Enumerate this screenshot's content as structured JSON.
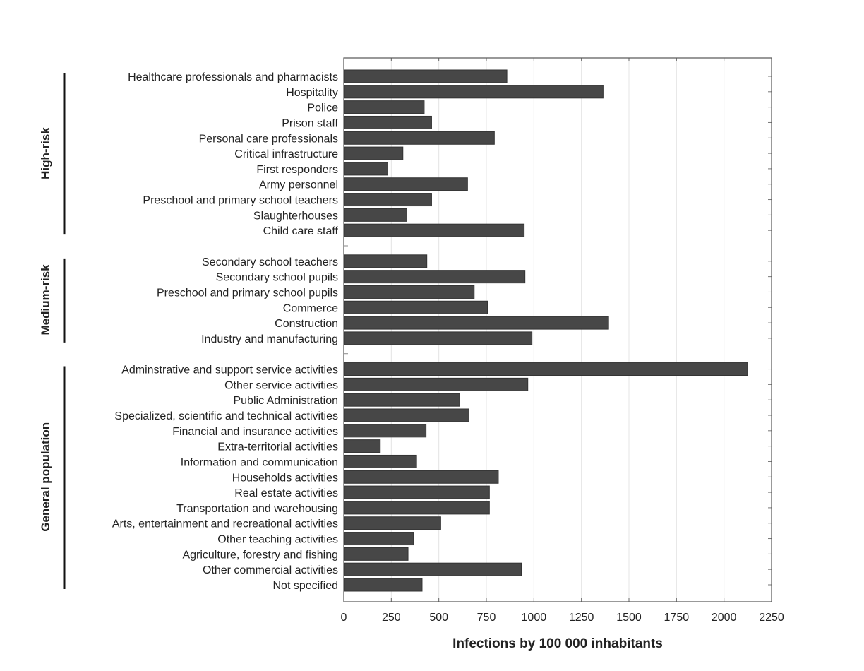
{
  "chart_data": {
    "type": "bar",
    "orientation": "horizontal",
    "title": "",
    "xlabel": "Infections by 100 000 inhabitants",
    "ylabel": "",
    "xlim": [
      0,
      2250
    ],
    "xticks": [
      0,
      250,
      500,
      750,
      1000,
      1250,
      1500,
      1750,
      2000,
      2250
    ],
    "grid": "vertical",
    "bar_color": "#474747",
    "groups": [
      {
        "name": "High-risk",
        "categories": [
          {
            "label": "Healthcare professionals and pharmacists",
            "value": 858
          },
          {
            "label": "Hospitality",
            "value": 1364
          },
          {
            "label": "Police",
            "value": 423
          },
          {
            "label": "Prison staff",
            "value": 462
          },
          {
            "label": "Personal care professionals",
            "value": 792
          },
          {
            "label": "Critical infrastructure",
            "value": 311
          },
          {
            "label": "First responders",
            "value": 232
          },
          {
            "label": "Army personnel",
            "value": 651
          },
          {
            "label": "Preschool and primary school teachers",
            "value": 462
          },
          {
            "label": "Slaughterhouses",
            "value": 332
          },
          {
            "label": "Child care staff",
            "value": 949
          }
        ]
      },
      {
        "name": "Medium-risk",
        "categories": [
          {
            "label": "Secondary school teachers",
            "value": 437
          },
          {
            "label": "Secondary school pupils",
            "value": 953
          },
          {
            "label": "Preschool and primary school pupils",
            "value": 686
          },
          {
            "label": "Commerce",
            "value": 756
          },
          {
            "label": "Construction",
            "value": 1393
          },
          {
            "label": "Industry and manufacturing",
            "value": 990
          }
        ]
      },
      {
        "name": "General population",
        "categories": [
          {
            "label": "Adminstrative and support service activities",
            "value": 2124
          },
          {
            "label": "Other service activities",
            "value": 968
          },
          {
            "label": "Public Administration",
            "value": 610
          },
          {
            "label": "Specialized, scientific and technical activities",
            "value": 659
          },
          {
            "label": "Financial and insurance activities",
            "value": 433
          },
          {
            "label": "Extra-territorial activities",
            "value": 192
          },
          {
            "label": "Information and communication",
            "value": 383
          },
          {
            "label": "Households activities",
            "value": 813
          },
          {
            "label": "Real estate activities",
            "value": 766
          },
          {
            "label": "Transportation and warehousing",
            "value": 766
          },
          {
            "label": "Arts, entertainment and recreational activities",
            "value": 510
          },
          {
            "label": "Other teaching activities",
            "value": 367
          },
          {
            "label": "Agriculture, forestry and fishing",
            "value": 338
          },
          {
            "label": "Other commercial activities",
            "value": 934
          },
          {
            "label": "Not specified",
            "value": 412
          }
        ]
      }
    ]
  }
}
